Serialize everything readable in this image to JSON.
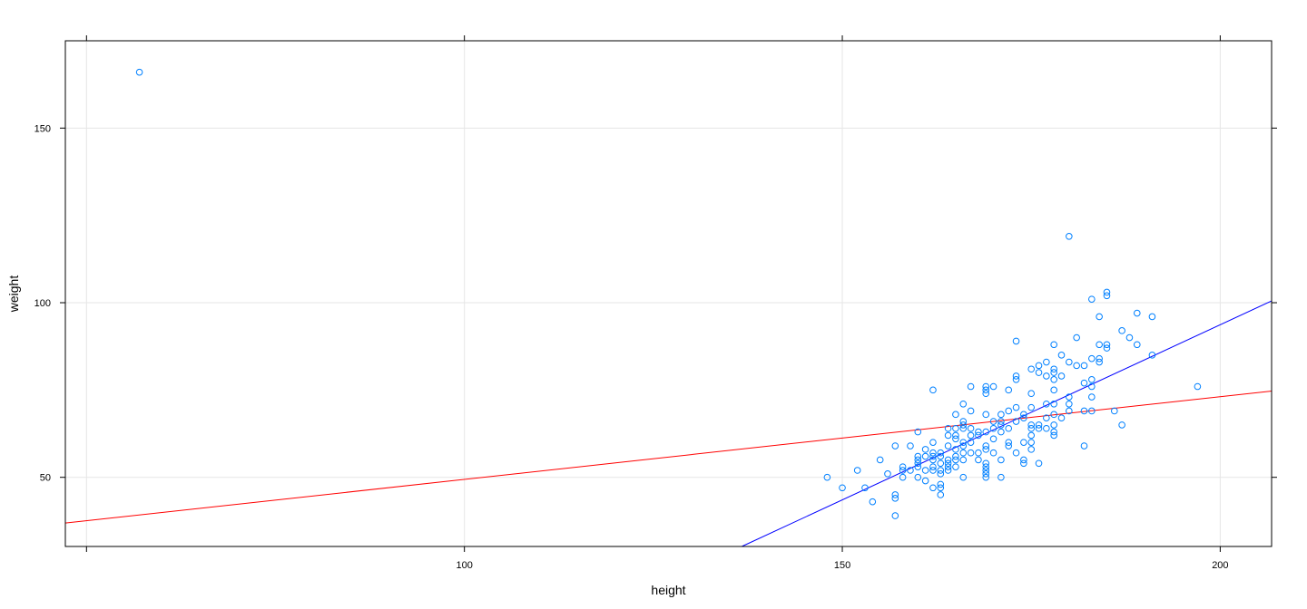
{
  "chart_data": {
    "type": "scatter",
    "title": "",
    "xlabel": "height",
    "ylabel": "weight",
    "xlim": [
      47.2,
      206.8
    ],
    "ylim": [
      30.2,
      175.0
    ],
    "x_ticks": [
      50,
      100,
      150,
      200
    ],
    "y_ticks": [
      50,
      100,
      150
    ],
    "x_tick_labels": [
      "",
      "100",
      "150",
      "200"
    ],
    "y_tick_labels": [
      "50",
      "100",
      "150"
    ],
    "grid": true,
    "legend": "none",
    "colors": {
      "points": "#0080ff",
      "fit_line": "#0000ff",
      "robust_line": "#ff0000",
      "grid": "#e6e6e6",
      "frame": "#000000"
    },
    "lines": [
      {
        "color": "blue",
        "x": [
          136.7,
          206.8
        ],
        "y": [
          30.2,
          100.5
        ]
      },
      {
        "color": "red",
        "x": [
          47.2,
          206.8
        ],
        "y": [
          36.9,
          74.7
        ]
      }
    ],
    "points": [
      [
        57,
        166
      ],
      [
        148,
        50
      ],
      [
        150,
        47
      ],
      [
        152,
        52
      ],
      [
        153,
        47
      ],
      [
        154,
        43
      ],
      [
        155,
        55
      ],
      [
        156,
        51
      ],
      [
        157,
        59
      ],
      [
        157,
        45
      ],
      [
        157,
        44
      ],
      [
        157,
        39
      ],
      [
        158,
        53
      ],
      [
        158,
        52
      ],
      [
        158,
        50
      ],
      [
        159,
        59
      ],
      [
        159,
        52
      ],
      [
        160,
        56
      ],
      [
        160,
        55
      ],
      [
        160,
        54
      ],
      [
        160,
        53
      ],
      [
        160,
        50
      ],
      [
        160,
        63
      ],
      [
        161,
        58
      ],
      [
        161,
        56
      ],
      [
        161,
        52
      ],
      [
        161,
        49
      ],
      [
        162,
        75
      ],
      [
        162,
        60
      ],
      [
        162,
        57
      ],
      [
        162,
        56
      ],
      [
        162,
        55
      ],
      [
        162,
        53
      ],
      [
        162,
        52
      ],
      [
        162,
        47
      ],
      [
        163,
        57
      ],
      [
        163,
        56
      ],
      [
        163,
        54
      ],
      [
        163,
        52
      ],
      [
        163,
        51
      ],
      [
        163,
        48
      ],
      [
        163,
        47
      ],
      [
        163,
        45
      ],
      [
        164,
        64
      ],
      [
        164,
        62
      ],
      [
        164,
        59
      ],
      [
        164,
        55
      ],
      [
        164,
        54
      ],
      [
        164,
        53
      ],
      [
        164,
        52
      ],
      [
        165,
        68
      ],
      [
        165,
        64
      ],
      [
        165,
        62
      ],
      [
        165,
        61
      ],
      [
        165,
        58
      ],
      [
        165,
        56
      ],
      [
        165,
        55
      ],
      [
        165,
        53
      ],
      [
        166,
        71
      ],
      [
        166,
        66
      ],
      [
        166,
        65
      ],
      [
        166,
        64
      ],
      [
        166,
        60
      ],
      [
        166,
        59
      ],
      [
        166,
        57
      ],
      [
        166,
        55
      ],
      [
        166,
        50
      ],
      [
        167,
        76
      ],
      [
        167,
        69
      ],
      [
        167,
        64
      ],
      [
        167,
        62
      ],
      [
        167,
        60
      ],
      [
        167,
        57
      ],
      [
        168,
        63
      ],
      [
        168,
        62
      ],
      [
        168,
        57
      ],
      [
        168,
        55
      ],
      [
        169,
        76
      ],
      [
        169,
        75
      ],
      [
        169,
        74
      ],
      [
        169,
        68
      ],
      [
        169,
        63
      ],
      [
        169,
        59
      ],
      [
        169,
        58
      ],
      [
        169,
        54
      ],
      [
        169,
        53
      ],
      [
        169,
        52
      ],
      [
        169,
        51
      ],
      [
        169,
        50
      ],
      [
        170,
        76
      ],
      [
        170,
        66
      ],
      [
        170,
        64
      ],
      [
        170,
        61
      ],
      [
        170,
        57
      ],
      [
        171,
        68
      ],
      [
        171,
        66
      ],
      [
        171,
        65
      ],
      [
        171,
        63
      ],
      [
        171,
        55
      ],
      [
        171,
        50
      ],
      [
        172,
        75
      ],
      [
        172,
        69
      ],
      [
        172,
        64
      ],
      [
        172,
        60
      ],
      [
        172,
        59
      ],
      [
        173,
        89
      ],
      [
        173,
        79
      ],
      [
        173,
        78
      ],
      [
        173,
        70
      ],
      [
        173,
        66
      ],
      [
        173,
        57
      ],
      [
        174,
        68
      ],
      [
        174,
        67
      ],
      [
        174,
        60
      ],
      [
        174,
        55
      ],
      [
        174,
        54
      ],
      [
        175,
        81
      ],
      [
        175,
        74
      ],
      [
        175,
        70
      ],
      [
        175,
        65
      ],
      [
        175,
        64
      ],
      [
        175,
        62
      ],
      [
        175,
        60
      ],
      [
        175,
        58
      ],
      [
        176,
        82
      ],
      [
        176,
        80
      ],
      [
        176,
        65
      ],
      [
        176,
        64
      ],
      [
        176,
        54
      ],
      [
        177,
        83
      ],
      [
        177,
        79
      ],
      [
        177,
        71
      ],
      [
        177,
        67
      ],
      [
        177,
        64
      ],
      [
        178,
        88
      ],
      [
        178,
        81
      ],
      [
        178,
        80
      ],
      [
        178,
        78
      ],
      [
        178,
        75
      ],
      [
        178,
        71
      ],
      [
        178,
        68
      ],
      [
        178,
        65
      ],
      [
        178,
        63
      ],
      [
        178,
        62
      ],
      [
        179,
        85
      ],
      [
        179,
        79
      ],
      [
        179,
        67
      ],
      [
        180,
        119
      ],
      [
        180,
        83
      ],
      [
        180,
        73
      ],
      [
        180,
        71
      ],
      [
        180,
        69
      ],
      [
        181,
        90
      ],
      [
        181,
        82
      ],
      [
        182,
        82
      ],
      [
        182,
        77
      ],
      [
        182,
        69
      ],
      [
        182,
        59
      ],
      [
        183,
        101
      ],
      [
        183,
        84
      ],
      [
        183,
        78
      ],
      [
        183,
        76
      ],
      [
        183,
        73
      ],
      [
        183,
        69
      ],
      [
        184,
        96
      ],
      [
        184,
        88
      ],
      [
        184,
        84
      ],
      [
        184,
        83
      ],
      [
        185,
        103
      ],
      [
        185,
        102
      ],
      [
        185,
        88
      ],
      [
        185,
        87
      ],
      [
        186,
        69
      ],
      [
        187,
        92
      ],
      [
        187,
        65
      ],
      [
        188,
        90
      ],
      [
        189,
        97
      ],
      [
        189,
        88
      ],
      [
        191,
        96
      ],
      [
        191,
        85
      ],
      [
        197,
        76
      ]
    ]
  }
}
